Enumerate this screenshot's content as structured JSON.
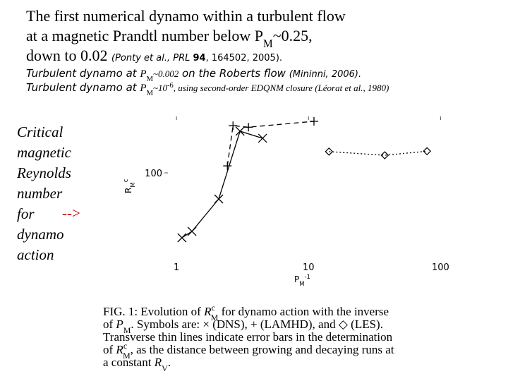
{
  "title_lines": [
    [
      "The first numerical dynamo within a turbulent flow"
    ],
    [
      "at a magnetic Prandtl number below P",
      "M",
      "~0.25,"
    ],
    [
      "down to 0.02 ",
      "(Ponty et al., PRL ",
      "94",
      ", 164502, 2005)."
    ],
    [
      "Turbulent dynamo at ",
      "P",
      "M",
      "~0.002",
      " on the Roberts flow ",
      "(Mininni, 2006)."
    ],
    [
      "Turbulent dynamo at ",
      "P",
      "M",
      "~10",
      "-6",
      ", using second-order EDQNM closure (Léorat et al., 1980)"
    ]
  ],
  "side_note": [
    "Critical",
    "magnetic",
    "Reynolds",
    "number",
    "for",
    "-->",
    "dynamo",
    "action"
  ],
  "chart_data": {
    "type": "line",
    "xlabel": [
      "P",
      "M",
      "-1"
    ],
    "ylabel": [
      "R",
      "M",
      "c"
    ],
    "log_x": true,
    "log_y": true,
    "xlim": [
      0.81,
      114
    ],
    "ylim": [
      22.8,
      268
    ],
    "xticks": [
      1,
      10,
      100
    ],
    "yticks": [
      100
    ],
    "series": [
      {
        "marker": "x",
        "line": "solid",
        "color": "#000",
        "x": [
          1.1,
          1.31,
          2.09,
          3.03,
          4.49
        ],
        "values": [
          32.2,
          36.0,
          63.4,
          207,
          183
        ]
      },
      {
        "marker": "+",
        "line": "dashed",
        "color": "#000",
        "x": [
          2.43,
          2.68,
          3.51,
          11.0
        ],
        "values": [
          113,
          228,
          222,
          246
        ]
      },
      {
        "marker": "diamond",
        "line": "dotted",
        "color": "#000",
        "x": [
          14.3,
          37.8,
          79.0
        ],
        "values": [
          145,
          136,
          146
        ]
      }
    ]
  },
  "caption": [
    [
      "FIG. 1: Evolution of ",
      "R",
      "c",
      "M",
      " for dynamo action with the inverse"
    ],
    [
      "of ",
      "P",
      "M",
      ". Symbols are: × (DNS), + (LAMHD), and ◇ (LES)."
    ],
    [
      "Transverse thin lines indicate error bars in the determination"
    ],
    [
      "of ",
      "R",
      "c",
      "M",
      ", as the distance between growing and decaying runs at"
    ],
    [
      "a constant ",
      "R",
      "V",
      "."
    ]
  ]
}
